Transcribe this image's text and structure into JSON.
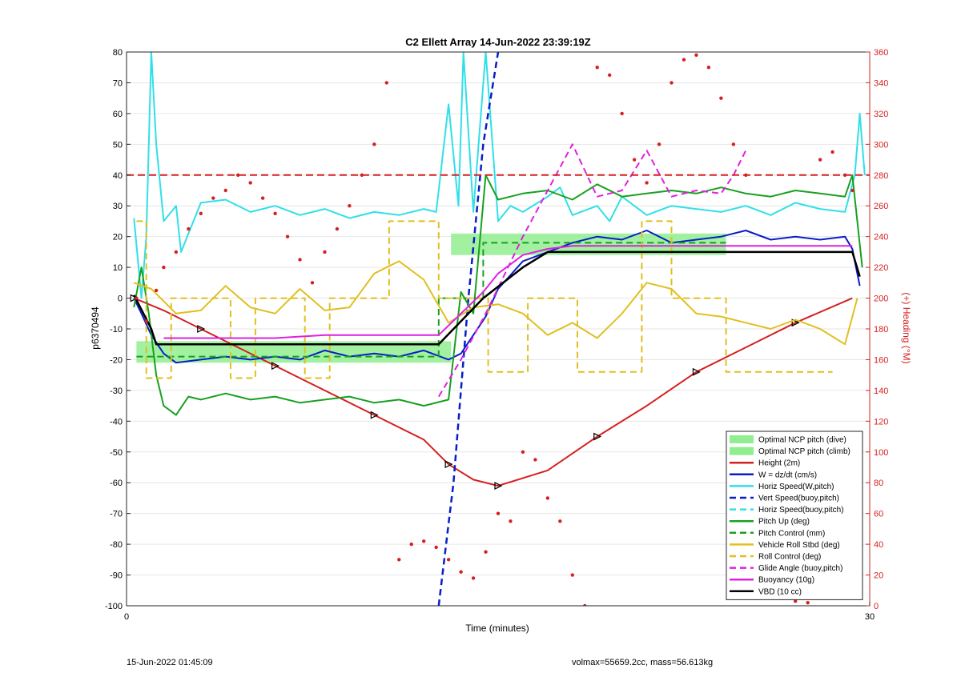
{
  "footer": {
    "left": "15-Jun-2022 01:45:09",
    "right": "volmax=55659.2cc, mass=56.613kg"
  },
  "chart_data": {
    "type": "line",
    "title": "C2 Ellett Array 14-Jun-2022 23:39:19Z",
    "xlabel": "Time (minutes)",
    "ylabel": "p6370494",
    "ylabel_right": "(+) Heading (°M)",
    "xlim": [
      0,
      30
    ],
    "ylim": [
      -100,
      80
    ],
    "ylim_right": [
      0,
      360
    ],
    "x_ticks": [
      0,
      30
    ],
    "y_ticks": [
      80,
      70,
      60,
      50,
      40,
      30,
      20,
      10,
      0,
      -10,
      -20,
      -30,
      -40,
      -50,
      -60,
      -70,
      -80,
      -90,
      -100
    ],
    "y_ticks_right": [
      360,
      340,
      320,
      300,
      280,
      260,
      240,
      220,
      200,
      180,
      160,
      140,
      120,
      100,
      80,
      60,
      40,
      20,
      0
    ],
    "grid": true,
    "legend_position": "bottom-right",
    "bands": [
      {
        "name": "Optimal NCP pitch (dive)",
        "color": "#90ee90",
        "x": [
          0.4,
          13.1
        ],
        "y": [
          -21,
          -14
        ]
      },
      {
        "name": "Optimal NCP pitch (climb)",
        "color": "#90ee90",
        "x": [
          13.1,
          24.2
        ],
        "y": [
          14,
          21
        ]
      }
    ],
    "series": [
      {
        "name": "Height (2m)",
        "color": "#d62020",
        "dash": "solid",
        "width": 2,
        "x": [
          0.3,
          1.5,
          3,
          4.5,
          6,
          8,
          10,
          12,
          13,
          14,
          15,
          17,
          19,
          21,
          23,
          25,
          27,
          29.3
        ],
        "y": [
          0,
          -4,
          -10,
          -16,
          -22,
          -30,
          -38,
          -46,
          -54,
          -59,
          -61,
          -56,
          -45,
          -35,
          -24,
          -16,
          -8,
          0
        ]
      },
      {
        "name": "W = dz/dt (cm/s)",
        "color": "#0a1ec8",
        "dash": "solid",
        "width": 2,
        "x": [
          0.3,
          0.6,
          1.0,
          1.5,
          2.0,
          3,
          4,
          5,
          6,
          7,
          8,
          9,
          10,
          11,
          12,
          13,
          13.5,
          14,
          14.5,
          15,
          16,
          17,
          18,
          19,
          20,
          21,
          22,
          23,
          24,
          25,
          26,
          27,
          28,
          29,
          29.3,
          29.6
        ],
        "y": [
          0,
          -5,
          -12,
          -18,
          -21,
          -20,
          -19,
          -20,
          -19,
          -20,
          -17,
          -19,
          -18,
          -19,
          -17,
          -20,
          -18,
          -12,
          -6,
          3,
          12,
          15,
          18,
          20,
          19,
          22,
          18,
          19,
          20,
          22,
          19,
          20,
          19,
          20,
          16,
          4
        ]
      },
      {
        "name": "Horiz Speed(W,pitch)",
        "color": "#30e0e8",
        "dash": "solid",
        "width": 2,
        "x": [
          0.3,
          0.6,
          0.8,
          1.0,
          1.2,
          1.5,
          2,
          2.2,
          3,
          4,
          5,
          6,
          7,
          8,
          9,
          10,
          11,
          12,
          12.5,
          13,
          13.4,
          13.6,
          14,
          14.5,
          15,
          15.5,
          16,
          17,
          17.5,
          18,
          19,
          19.5,
          20,
          21,
          22,
          23,
          24,
          25,
          26,
          27,
          28,
          29,
          29.4,
          29.6,
          29.8
        ],
        "y": [
          26,
          0,
          20,
          80,
          50,
          25,
          30,
          15,
          31,
          32,
          28,
          30,
          27,
          29,
          26,
          28,
          27,
          29,
          28,
          63,
          30,
          80,
          28,
          80,
          25,
          30,
          28,
          33,
          36,
          27,
          30,
          25,
          33,
          27,
          30,
          29,
          28,
          30,
          27,
          31,
          29,
          28,
          40,
          60,
          40
        ]
      },
      {
        "name": "Vert Speed(buoy,pitch)",
        "color": "#0a1ec8",
        "dash": "dashed",
        "width": 2.5,
        "x": [
          12.6,
          13.2,
          13.8,
          14.4,
          15.0
        ],
        "y": [
          -100,
          -60,
          0,
          50,
          80
        ]
      },
      {
        "name": "Horiz Speed(buoy,pitch)",
        "color": "#30e0e8",
        "dash": "dashed",
        "width": 2,
        "x": [],
        "y": []
      },
      {
        "name": "Pitch Up (deg)",
        "color": "#18a020",
        "dash": "solid",
        "width": 2,
        "x": [
          0.3,
          0.6,
          0.9,
          1.2,
          1.5,
          2,
          2.5,
          3,
          4,
          5,
          6,
          7,
          8,
          9,
          10,
          11,
          12,
          13,
          13.5,
          14,
          14.5,
          15,
          16,
          17,
          18,
          19,
          20,
          21,
          22,
          23,
          24,
          25,
          26,
          27,
          28,
          29,
          29.3,
          29.7
        ],
        "y": [
          -3,
          10,
          -5,
          -25,
          -35,
          -38,
          -32,
          -33,
          -31,
          -33,
          -32,
          -34,
          -33,
          -32,
          -34,
          -33,
          -35,
          -33,
          2,
          -5,
          40,
          32,
          34,
          35,
          32,
          37,
          33,
          34,
          35,
          34,
          36,
          34,
          33,
          35,
          34,
          33,
          40,
          10
        ]
      },
      {
        "name": "Pitch Control (mm)",
        "color": "#18a020",
        "dash": "dashed",
        "width": 2,
        "x": [
          0.4,
          12.6,
          12.6,
          14.4,
          14.4,
          24.2
        ],
        "y": [
          -19,
          -19,
          0,
          0,
          18,
          18
        ]
      },
      {
        "name": "Vehicle Roll Stbd (deg)",
        "color": "#e0c020",
        "dash": "solid",
        "width": 2,
        "x": [
          0.3,
          1,
          2,
          3,
          4,
          5,
          6,
          7,
          8,
          9,
          10,
          11,
          12,
          13,
          14,
          15,
          16,
          17,
          18,
          19,
          20,
          21,
          22,
          23,
          24,
          25,
          26,
          27,
          28,
          29,
          29.5
        ],
        "y": [
          5,
          3,
          -5,
          -4,
          4,
          -3,
          -5,
          3,
          -4,
          -3,
          8,
          12,
          6,
          -8,
          -3,
          -2,
          -5,
          -12,
          -8,
          -13,
          -5,
          5,
          3,
          -5,
          -6,
          -8,
          -10,
          -7,
          -10,
          -15,
          0
        ]
      },
      {
        "name": "Roll Control (deg)",
        "color": "#e0c020",
        "dash": "dashed",
        "width": 2,
        "x": [
          0.4,
          0.8,
          0.8,
          1.8,
          1.8,
          4.2,
          4.2,
          5.2,
          5.2,
          7.2,
          7.2,
          8.2,
          8.2,
          10.6,
          10.6,
          12.6,
          12.6,
          14.6,
          14.6,
          16.2,
          16.2,
          18.2,
          18.2,
          20.8,
          20.8,
          22.0,
          22.0,
          24.2,
          24.2,
          28.5
        ],
        "y": [
          25,
          25,
          -26,
          -26,
          0,
          0,
          -26,
          -26,
          0,
          0,
          -26,
          -26,
          0,
          0,
          25,
          25,
          0,
          0,
          -24,
          -24,
          0,
          0,
          -24,
          -24,
          25,
          25,
          0,
          0,
          -24,
          -24
        ]
      },
      {
        "name": "Glide Angle (buoy,pitch)",
        "color": "#e020e0",
        "dash": "dashed",
        "width": 2,
        "x": [
          12.6,
          13.5,
          14.5,
          16,
          17,
          18,
          19,
          20,
          21,
          22,
          23,
          24,
          24.5,
          25
        ],
        "y": [
          -32,
          -20,
          -5,
          20,
          35,
          50,
          33,
          35,
          48,
          33,
          35,
          34,
          40,
          48
        ]
      },
      {
        "name": "Buoyancy (10g)",
        "color": "#e020e0",
        "dash": "solid",
        "width": 2,
        "x": [
          1.5,
          4,
          6,
          8,
          10,
          12,
          12.6,
          14.4,
          15,
          16,
          17,
          18,
          20,
          22,
          24,
          26,
          28,
          29.3
        ],
        "y": [
          -13,
          -13,
          -13,
          -12,
          -12,
          -12,
          -12,
          2,
          8,
          14,
          16,
          17,
          17,
          17,
          17,
          17,
          17,
          17
        ]
      },
      {
        "name": "VBD (10 cc)",
        "color": "#000000",
        "dash": "solid",
        "width": 2.5,
        "x": [
          0.3,
          1.0,
          1.2,
          2,
          4,
          6,
          8,
          10,
          12,
          12.6,
          14.4,
          16,
          17,
          18,
          20,
          22,
          24,
          26,
          28,
          29.3,
          29.6
        ],
        "y": [
          1,
          -10,
          -15,
          -15,
          -15,
          -15,
          -15,
          -15,
          -15,
          -15,
          0,
          10,
          15,
          15,
          15,
          15,
          15,
          15,
          15,
          15,
          7
        ]
      },
      {
        "name": "Heading",
        "color": "#d62020",
        "dash": "none",
        "marker": "dot",
        "axis": "right",
        "legend": false,
        "x": [
          0.4,
          0.8,
          1.2,
          1.5,
          2,
          2.5,
          3,
          3.5,
          4,
          4.5,
          5,
          5.5,
          6,
          6.5,
          7,
          7.5,
          8,
          8.5,
          9,
          9.5,
          10,
          10.5,
          11,
          11.5,
          12,
          12.5,
          13,
          13.5,
          14,
          14.5,
          15,
          15.5,
          16,
          16.5,
          17,
          17.5,
          18,
          18.5,
          19,
          19.5,
          20,
          20.5,
          21,
          21.5,
          22,
          22.5,
          23,
          23.5,
          24,
          24.5,
          25,
          25.5,
          26,
          26.5,
          27,
          27.5,
          28,
          28.5,
          29,
          29.3
        ],
        "y": [
          200,
          185,
          205,
          220,
          230,
          245,
          255,
          265,
          270,
          280,
          275,
          265,
          255,
          240,
          225,
          210,
          230,
          245,
          260,
          280,
          300,
          340,
          30,
          40,
          42,
          38,
          30,
          22,
          18,
          35,
          60,
          55,
          100,
          95,
          70,
          55,
          20,
          0,
          350,
          345,
          320,
          290,
          275,
          300,
          340,
          355,
          358,
          350,
          330,
          300,
          280,
          10,
          8,
          5,
          3,
          2,
          290,
          295,
          280,
          270
        ]
      }
    ]
  }
}
